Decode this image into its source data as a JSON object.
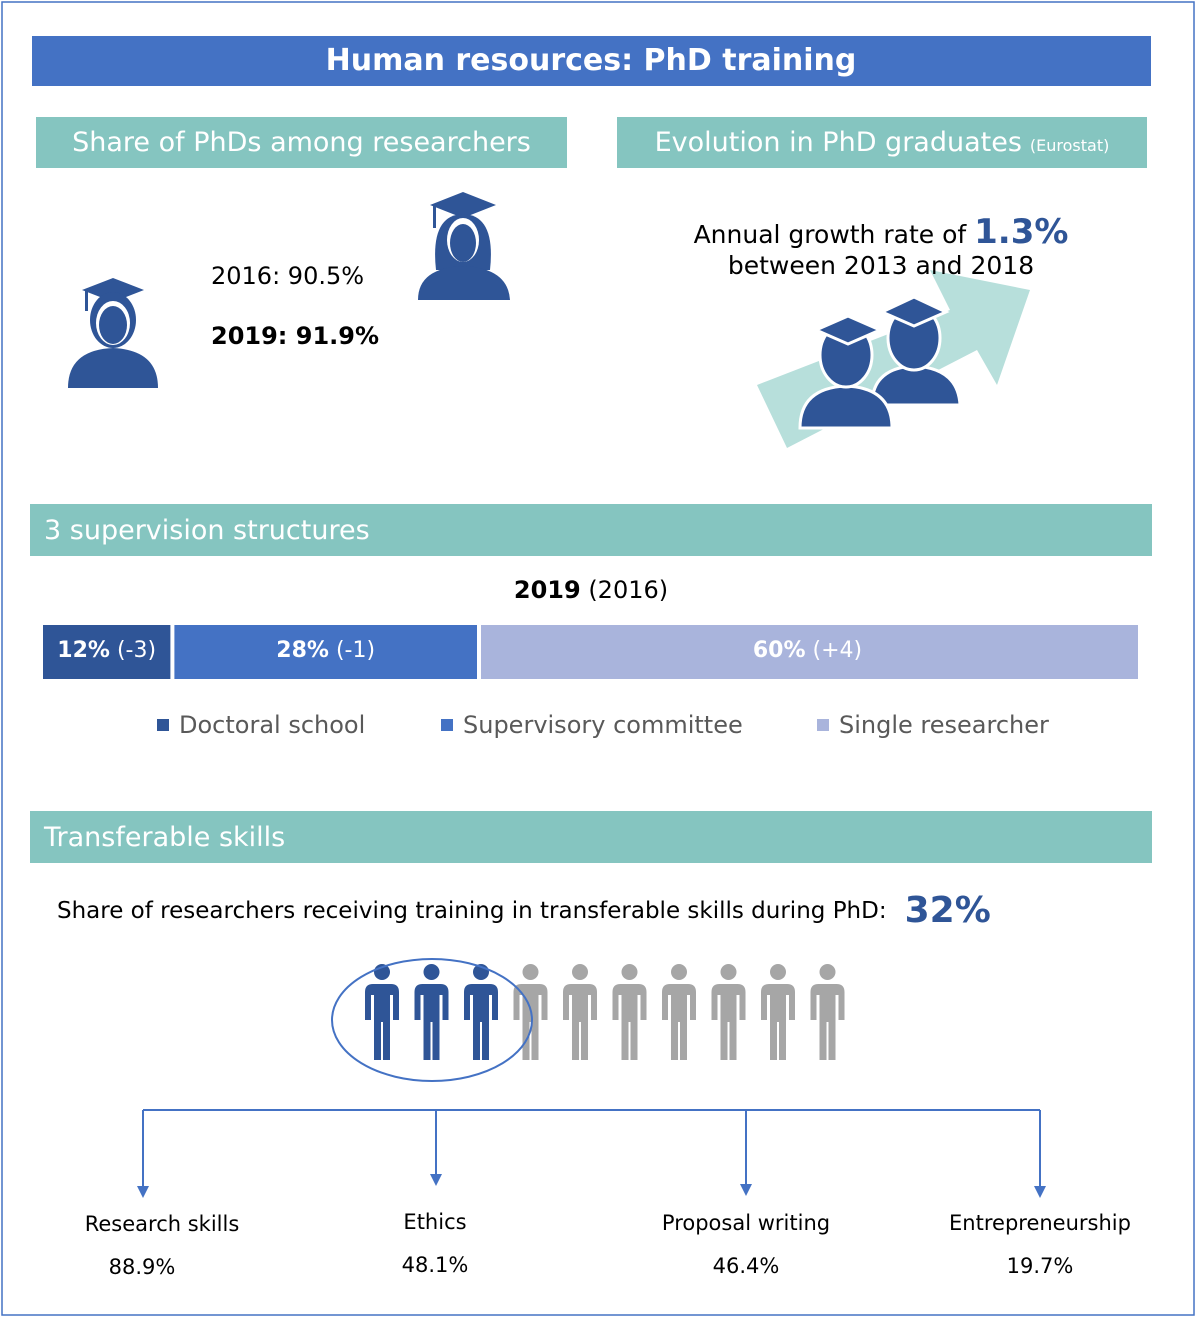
{
  "header": {
    "title": "Human resources: PhD training"
  },
  "share_phds": {
    "heading": "Share of PhDs among researchers",
    "line_2016": "2016: 90.5%",
    "line_2019": "2019: 91.9%"
  },
  "evolution": {
    "heading": "Evolution in PhD graduates",
    "source": "(Eurostat)",
    "text_before": "Annual growth rate of",
    "rate": "1.3%",
    "text_after": "between 2013 and 2018"
  },
  "supervision": {
    "heading": "3 supervision structures",
    "year": "2019",
    "year_ref": "(2016)",
    "segments": [
      {
        "name": "Doctoral school",
        "value": 12,
        "label": "12%",
        "change": "(-3)",
        "color": "#2f5597"
      },
      {
        "name": "Supervisory committee",
        "value": 28,
        "label": "28%",
        "change": "(-1)",
        "color": "#4472c4"
      },
      {
        "name": "Single researcher",
        "value": 60,
        "label": "60%",
        "change": "(+4)",
        "color": "#a9b4dc"
      }
    ]
  },
  "skills": {
    "heading": "Transferable skills",
    "text": "Share of researchers receiving training in transferable skills during PhD:",
    "share": "32%",
    "items": [
      {
        "label": "Research skills",
        "value": "88.9%"
      },
      {
        "label": "Ethics",
        "value": "48.1%"
      },
      {
        "label": "Proposal writing",
        "value": "46.4%"
      },
      {
        "label": "Entrepreneurship",
        "value": "19.7%"
      }
    ]
  }
}
